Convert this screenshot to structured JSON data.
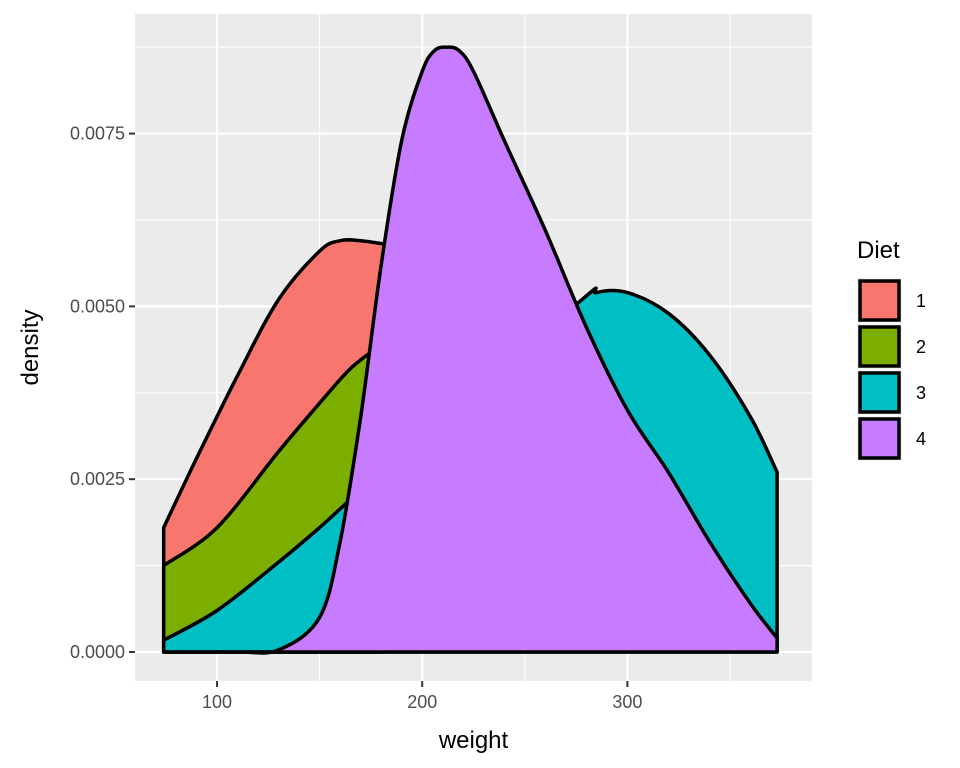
{
  "chart_data": {
    "type": "area",
    "xlabel": "weight",
    "ylabel": "density",
    "xlim": [
      60,
      390
    ],
    "ylim": [
      -0.00042,
      0.00923
    ],
    "x_ticks": [
      100,
      200,
      300
    ],
    "x_tick_labels": [
      "100",
      "200",
      "300"
    ],
    "y_ticks": [
      0,
      0.0025,
      0.005,
      0.0075
    ],
    "y_tick_labels": [
      "0.0000",
      "0.0025",
      "0.0050",
      "0.0075"
    ],
    "grid": true,
    "legend": {
      "title": "Diet",
      "placement": "right"
    },
    "series": [
      {
        "name": "1",
        "color": "#F8766D",
        "x": [
          74,
          90,
          110,
          130,
          150,
          160,
          170,
          182
        ],
        "y": [
          0.0018,
          0.0028,
          0.004,
          0.0051,
          0.0058,
          0.00595,
          0.00595,
          0.0059
        ]
      },
      {
        "name": "2",
        "color": "#7CAE00",
        "x": [
          74,
          100,
          130,
          150,
          165,
          178
        ],
        "y": [
          0.00125,
          0.0018,
          0.0029,
          0.0036,
          0.0041,
          0.0044
        ]
      },
      {
        "name": "3",
        "color": "#00BFC4",
        "x": [
          74,
          100,
          130,
          150,
          165,
          175,
          274,
          285,
          300,
          320,
          340,
          360,
          373
        ],
        "y": [
          0.00017,
          0.0006,
          0.0013,
          0.0018,
          0.0022,
          0.0024,
          0.005,
          0.0052,
          0.0052,
          0.0049,
          0.0043,
          0.0034,
          0.0026
        ]
      },
      {
        "name": "4",
        "color": "#C77CFF",
        "x": [
          74,
          110,
          130,
          150,
          160,
          170,
          180,
          190,
          200,
          206,
          212,
          218,
          225,
          240,
          260,
          280,
          300,
          320,
          340,
          360,
          373
        ],
        "y": [
          0.0,
          0.0,
          3e-05,
          0.0005,
          0.0016,
          0.0034,
          0.0056,
          0.0074,
          0.0084,
          0.0087,
          0.00875,
          0.0087,
          0.0084,
          0.0074,
          0.0061,
          0.0047,
          0.0035,
          0.0026,
          0.0016,
          0.0007,
          0.0002
        ]
      }
    ]
  }
}
